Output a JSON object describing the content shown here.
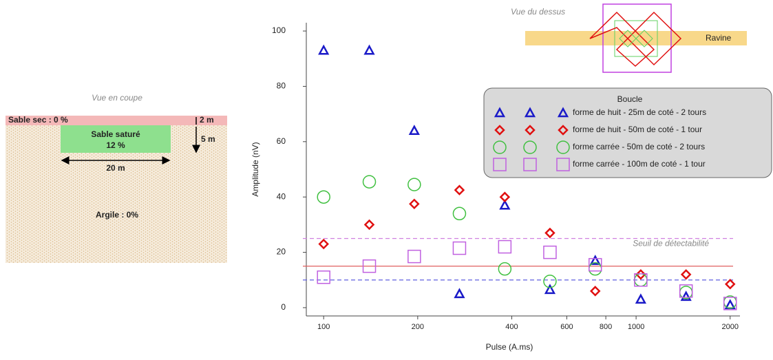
{
  "chart_data": {
    "type": "scatter",
    "xlabel": "Pulse (A.ms)",
    "ylabel": "Amplitude (nV)",
    "xscale": "log",
    "xlim": [
      88,
      2150
    ],
    "ylim": [
      -3,
      103
    ],
    "xticks": [
      100,
      200,
      400,
      600,
      800,
      1000,
      2000
    ],
    "yticks": [
      0,
      20,
      40,
      60,
      80,
      100
    ],
    "x": [
      100,
      140,
      195,
      272,
      380,
      530,
      740,
      1035,
      1445,
      2000
    ],
    "legend_title": "Boucle",
    "series": [
      {
        "name": "forme de huit - 25m de coté - 2 tours",
        "color": "#1a1ac8",
        "marker": "triangle",
        "values": [
          93,
          93,
          64,
          5,
          37,
          6.5,
          17,
          3,
          4,
          1
        ]
      },
      {
        "name": "forme de huit - 50m de coté - 1 tour",
        "color": "#e01010",
        "marker": "diamond",
        "values": [
          23,
          30,
          37.5,
          42.5,
          40,
          27,
          6,
          12,
          12,
          8.5
        ]
      },
      {
        "name": "forme carrée - 50m de coté - 2 tours",
        "color": "#40c040",
        "marker": "circle",
        "values": [
          40,
          45.5,
          44.5,
          34,
          14,
          9.5,
          14,
          10,
          5.5,
          2
        ]
      },
      {
        "name": "forme carrée - 100m de coté - 1 tour",
        "color": "#c060e0",
        "marker": "square",
        "values": [
          11,
          15,
          18.5,
          21.5,
          22,
          20,
          15.5,
          10,
          6,
          1.5
        ]
      }
    ],
    "thresholds": [
      {
        "value": 25,
        "color": "#d080e0",
        "dash": true
      },
      {
        "value": 15,
        "color": "#e06060",
        "dash": false
      },
      {
        "value": 10,
        "color": "#6060e0",
        "dash": true
      }
    ],
    "threshold_label": "Seuil de détectabilité"
  },
  "coupe": {
    "title": "Vue en coupe",
    "top_layer": "Sable sec : 0 %",
    "saturated": "Sable saturé",
    "saturated_pct": "12 %",
    "width": "20 m",
    "depth_top": "2 m",
    "depth": "5 m",
    "clay": "Argile : 0%"
  },
  "dessus": {
    "title": "Vue du dessus",
    "ravine": "Ravine"
  }
}
